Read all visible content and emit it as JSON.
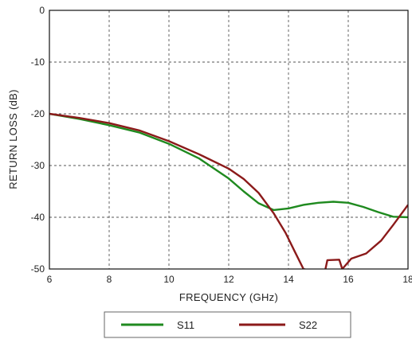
{
  "chart_data": {
    "type": "line",
    "xlabel": "FREQUENCY (GHz)",
    "ylabel": "RETURN LOSS (dB)",
    "xlim": [
      6,
      18
    ],
    "ylim": [
      -50,
      0
    ],
    "x_ticks": [
      6,
      8,
      10,
      12,
      14,
      16,
      18
    ],
    "y_ticks": [
      0,
      -10,
      -20,
      -30,
      -40,
      -50
    ],
    "x_tick_labels": [
      "6",
      "8",
      "10",
      "12",
      "14",
      "16",
      "18"
    ],
    "y_tick_labels": [
      "0",
      "-10",
      "-20",
      "-30",
      "-40",
      "-50"
    ],
    "grid": true,
    "legend_position": "bottom",
    "series": [
      {
        "name": "S11",
        "color": "#1f8a1f",
        "points": [
          [
            6,
            -20
          ],
          [
            7,
            -21
          ],
          [
            8,
            -22.2
          ],
          [
            9,
            -23.6
          ],
          [
            10,
            -25.8
          ],
          [
            11,
            -28.6
          ],
          [
            12,
            -32.5
          ],
          [
            12.5,
            -35
          ],
          [
            13,
            -37.3
          ],
          [
            13.5,
            -38.6
          ],
          [
            14,
            -38.3
          ],
          [
            14.5,
            -37.6
          ],
          [
            15,
            -37.2
          ],
          [
            15.5,
            -37
          ],
          [
            16,
            -37.2
          ],
          [
            16.5,
            -38
          ],
          [
            17,
            -39
          ],
          [
            17.5,
            -39.9
          ],
          [
            18,
            -40
          ]
        ]
      },
      {
        "name": "S22",
        "color": "#8b1a1a",
        "points": [
          [
            6,
            -20
          ],
          [
            7,
            -20.8
          ],
          [
            8,
            -21.8
          ],
          [
            9,
            -23.2
          ],
          [
            10,
            -25.3
          ],
          [
            11,
            -27.8
          ],
          [
            12,
            -30.6
          ],
          [
            12.5,
            -32.6
          ],
          [
            13,
            -35.3
          ],
          [
            13.5,
            -39.2
          ],
          [
            13.9,
            -43
          ],
          [
            14.2,
            -46.5
          ],
          [
            14.5,
            -50
          ],
          [
            15.2,
            -51
          ],
          [
            15.3,
            -48.3
          ],
          [
            15.7,
            -48.2
          ],
          [
            15.8,
            -50
          ],
          [
            16.1,
            -48
          ],
          [
            16.6,
            -47
          ],
          [
            17.1,
            -44.5
          ],
          [
            17.5,
            -41.5
          ],
          [
            18,
            -37.6
          ]
        ]
      }
    ]
  }
}
